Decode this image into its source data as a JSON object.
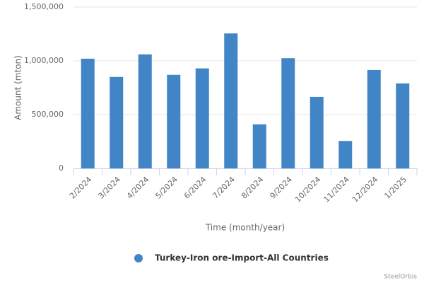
{
  "chart_data": {
    "type": "bar",
    "categories": [
      "2/2024",
      "3/2024",
      "4/2024",
      "5/2024",
      "6/2024",
      "7/2024",
      "8/2024",
      "9/2024",
      "10/2024",
      "11/2024",
      "12/2024",
      "1/2025"
    ],
    "series": [
      {
        "name": "Turkey-Iron ore-Import-All Countries",
        "color": "#4285c6",
        "values": [
          1020000,
          850000,
          1060000,
          870000,
          930000,
          1255000,
          410000,
          1025000,
          665000,
          255000,
          915000,
          790000
        ]
      }
    ],
    "ylim": [
      0,
      1500000
    ],
    "yticks": [
      0,
      {
        "value": 500000,
        "label": "500,000"
      },
      {
        "value": 1000000,
        "label": "1,000,000"
      },
      {
        "value": 1500000,
        "label": "1,500,000"
      }
    ],
    "y_label": "Amount (mton)",
    "x_label": "Time (month/year)",
    "credit": "SteelOrbis",
    "grid": true,
    "legend": "bottom"
  }
}
